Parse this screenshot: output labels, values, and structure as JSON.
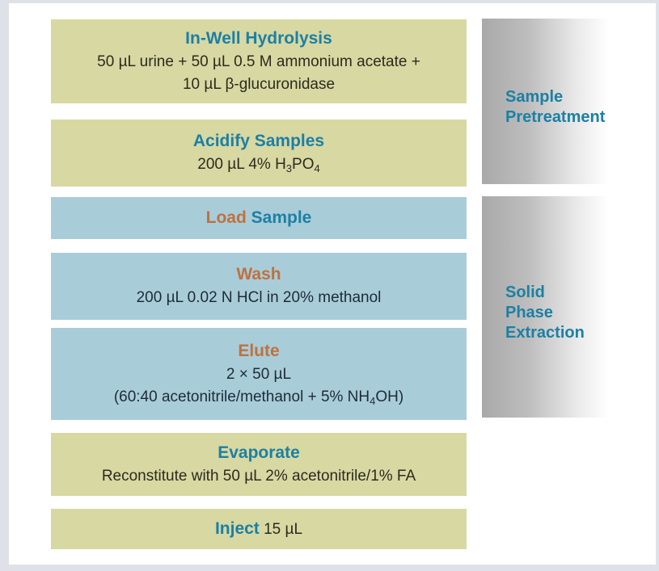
{
  "colors": {
    "frame_border": "#dee2e8",
    "olive": "#d8d8a3",
    "blue": "#a9ccd9",
    "teal": "#1c80a4",
    "orange": "#c0713e",
    "olive_text": "#2b2b1e",
    "blue_text": "#1c2c37",
    "gradient_start": "#a9a9a9",
    "gradient_end": "#ffffff"
  },
  "steps": [
    {
      "id": "in-well-hydrolysis",
      "variant": "olive",
      "lines": [
        [
          {
            "text": "In-Well Hydrolysis",
            "style": "teal"
          }
        ],
        [
          {
            "text": "50 µL urine + 50 µL 0.5 M ammonium acetate +",
            "style": "body"
          }
        ],
        [
          {
            "text": "10 µL β-glucuronidase",
            "style": "body"
          }
        ]
      ]
    },
    {
      "id": "acidify-samples",
      "variant": "olive",
      "lines": [
        [
          {
            "text": "Acidify Samples",
            "style": "teal"
          }
        ],
        [
          {
            "text": "200 µL 4% H",
            "style": "body"
          },
          {
            "text": "3",
            "style": "body",
            "sub": true
          },
          {
            "text": "PO",
            "style": "body"
          },
          {
            "text": "4",
            "style": "body",
            "sub": true
          }
        ]
      ]
    },
    {
      "id": "load-sample",
      "variant": "blue",
      "lines": [
        [
          {
            "text": "Load ",
            "style": "orange"
          },
          {
            "text": "Sample",
            "style": "teal"
          }
        ]
      ]
    },
    {
      "id": "wash",
      "variant": "blue",
      "lines": [
        [
          {
            "text": "Wash",
            "style": "orange"
          }
        ],
        [
          {
            "text": "200 µL 0.02 N HCl in 20% methanol",
            "style": "body"
          }
        ]
      ]
    },
    {
      "id": "elute",
      "variant": "blue",
      "lines": [
        [
          {
            "text": "Elute",
            "style": "orange"
          }
        ],
        [
          {
            "text": "2 × 50 µL",
            "style": "body"
          }
        ],
        [
          {
            "text": "(60:40 acetonitrile/methanol + 5% NH",
            "style": "body"
          },
          {
            "text": "4",
            "style": "body",
            "sub": true
          },
          {
            "text": "OH)",
            "style": "body"
          }
        ]
      ]
    },
    {
      "id": "evaporate",
      "variant": "olive",
      "lines": [
        [
          {
            "text": "Evaporate",
            "style": "teal"
          }
        ],
        [
          {
            "text": "Reconstitute with 50 µL 2% acetonitrile/1% FA",
            "style": "body"
          }
        ]
      ]
    },
    {
      "id": "inject",
      "variant": "olive",
      "lines": [
        [
          {
            "text": "Inject",
            "style": "teal"
          },
          {
            "text": " 15 µL",
            "style": "body"
          }
        ]
      ]
    }
  ],
  "phases": [
    {
      "id": "sample-pretreatment",
      "label": "Sample Pretreatment",
      "lines": [
        "Sample",
        "Pretreatment"
      ]
    },
    {
      "id": "solid-phase-extraction",
      "label": "Solid Phase Extraction",
      "lines": [
        "Solid",
        "Phase",
        "Extraction"
      ]
    }
  ]
}
